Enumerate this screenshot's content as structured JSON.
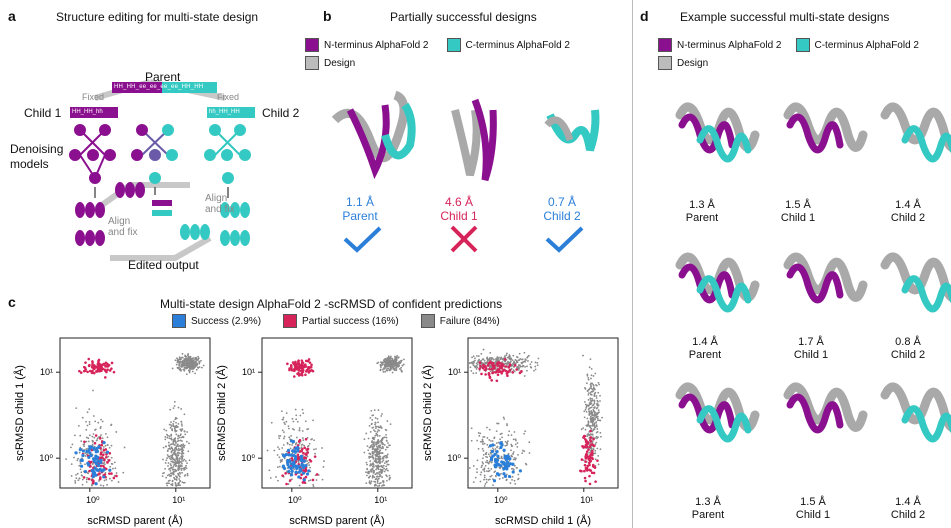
{
  "colors": {
    "purple": "#8b108f",
    "cyan": "#35c9c3",
    "grey": "#a9a9a9",
    "blue": "#2b7fd9",
    "red": "#d6245a",
    "gray_pts": "#8a8a8a"
  },
  "panel_a": {
    "label": "a",
    "title": "Structure editing for multi-state design",
    "parent": "Parent",
    "parent_seq": "HH_HH_ee_ee_ee_ee_HH_HH",
    "fixed_left": "Fixed",
    "fixed_right": "Fixed",
    "child1": "Child 1",
    "child2": "Child 2",
    "child1_seq": "HH_HH_hh",
    "child2_seq": "hh_HH_HH",
    "denoising": "Denoising\nmodels",
    "align1": "Align\nand fix",
    "align2": "Align\nand fix",
    "edited": "Edited output"
  },
  "panel_b": {
    "label": "b",
    "title": "Partially successful designs",
    "legend": [
      "N-terminus AlphaFold 2",
      "C-terminus AlphaFold 2",
      "Design"
    ],
    "items": [
      {
        "rmsd": "1.1 Å",
        "name": "Parent",
        "status": "success"
      },
      {
        "rmsd": "4.6 Å",
        "name": "Child 1",
        "status": "fail"
      },
      {
        "rmsd": "0.7 Å",
        "name": "Child 2",
        "status": "success"
      }
    ]
  },
  "panel_c": {
    "label": "c",
    "title": "Multi-state design AlphaFold 2 -scRMSD of confident predictions",
    "legend": [
      "Success (2.9%)",
      "Partial success (16%)",
      "Failure (84%)"
    ],
    "plots": [
      {
        "xlabel": "scRMSD parent (Å)",
        "ylabel": "scRMSD child 1 (Å)"
      },
      {
        "xlabel": "scRMSD parent (Å)",
        "ylabel": "scRMSD child 2 (Å)"
      },
      {
        "xlabel": "scRMSD child 1 (Å)",
        "ylabel": "scRMSD child 2 (Å)"
      }
    ],
    "ticks": {
      "x": [
        "10⁰",
        "10¹"
      ],
      "y": [
        "10⁰",
        "10¹"
      ]
    }
  },
  "panel_d": {
    "label": "d",
    "title": "Example successful multi-state designs",
    "legend": [
      "N-terminus AlphaFold 2",
      "C-terminus AlphaFold 2",
      "Design"
    ],
    "rows": [
      [
        {
          "rmsd": "1.3 Å",
          "name": "Parent"
        },
        {
          "rmsd": "1.5 Å",
          "name": "Child 1"
        },
        {
          "rmsd": "1.4 Å",
          "name": "Child 2"
        }
      ],
      [
        {
          "rmsd": "1.4 Å",
          "name": "Parent"
        },
        {
          "rmsd": "1.7 Å",
          "name": "Child 1"
        },
        {
          "rmsd": "0.8 Å",
          "name": "Child 2"
        }
      ],
      [
        {
          "rmsd": "1.3 Å",
          "name": "Parent"
        },
        {
          "rmsd": "1.5 Å",
          "name": "Child 1"
        },
        {
          "rmsd": "1.4 Å",
          "name": "Child 2"
        }
      ]
    ]
  }
}
